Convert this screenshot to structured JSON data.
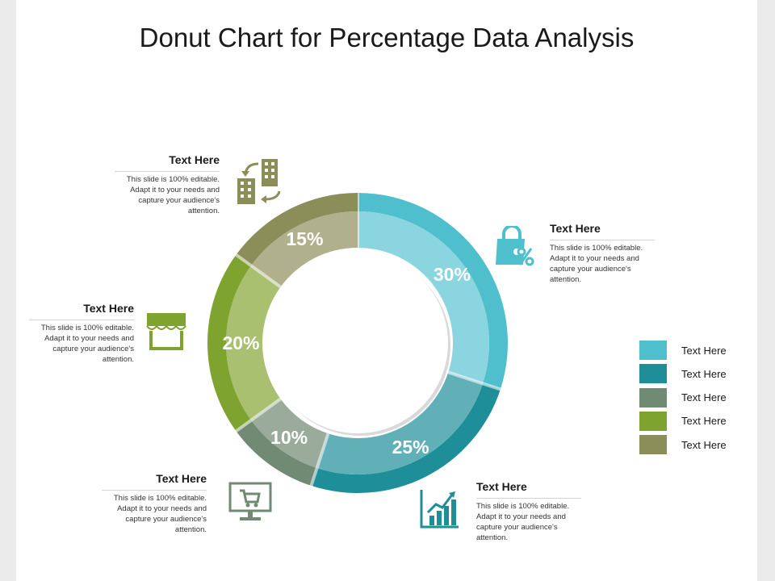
{
  "title": "Donut Chart for Percentage Data Analysis",
  "chart_data": {
    "type": "pie",
    "variant": "donut",
    "start_angle_deg": 0,
    "direction": "clockwise",
    "slices": [
      {
        "label": "30%",
        "value": 30,
        "outer_color": "#4fbfcd",
        "inner_color": "#8ad5df"
      },
      {
        "label": "25%",
        "value": 25,
        "outer_color": "#1e8e98",
        "inner_color": "#61b0b7"
      },
      {
        "label": "10%",
        "value": 10,
        "outer_color": "#708a73",
        "inner_color": "#9aab9c"
      },
      {
        "label": "20%",
        "value": 20,
        "outer_color": "#7ea42f",
        "inner_color": "#a8c070"
      },
      {
        "label": "15%",
        "value": 15,
        "outer_color": "#8b8e58",
        "inner_color": "#b0b18c"
      }
    ]
  },
  "callouts": {
    "top_left": {
      "heading": "Text Here",
      "body": "This slide is 100% editable. Adapt it to your needs and capture your audience's attention."
    },
    "top_right": {
      "heading": "Text Here",
      "body": "This slide is 100% editable. Adapt it to your needs and capture your audience's attention."
    },
    "middle_left": {
      "heading": "Text Here",
      "body": "This slide is 100% editable. Adapt it to your needs and capture your audience's attention."
    },
    "bottom_left": {
      "heading": "Text Here",
      "body": "This slide is 100% editable. Adapt it to your needs and capture your audience's attention."
    },
    "bottom_right": {
      "heading": "Text Here",
      "body": "This slide is 100% editable. Adapt it to your needs and capture your audience's attention."
    }
  },
  "icons": {
    "top_left": "buildings-exchange-icon",
    "top_right": "shopping-bag-percent-icon",
    "middle_left": "storefront-icon",
    "bottom_left": "computer-cart-icon",
    "bottom_right": "growth-chart-icon"
  },
  "legend": [
    {
      "label": "Text Here",
      "color": "#4fbfcd"
    },
    {
      "label": "Text Here",
      "color": "#1e8e98"
    },
    {
      "label": "Text Here",
      "color": "#708a73"
    },
    {
      "label": "Text Here",
      "color": "#7ea42f"
    },
    {
      "label": "Text Here",
      "color": "#8b8e58"
    }
  ]
}
